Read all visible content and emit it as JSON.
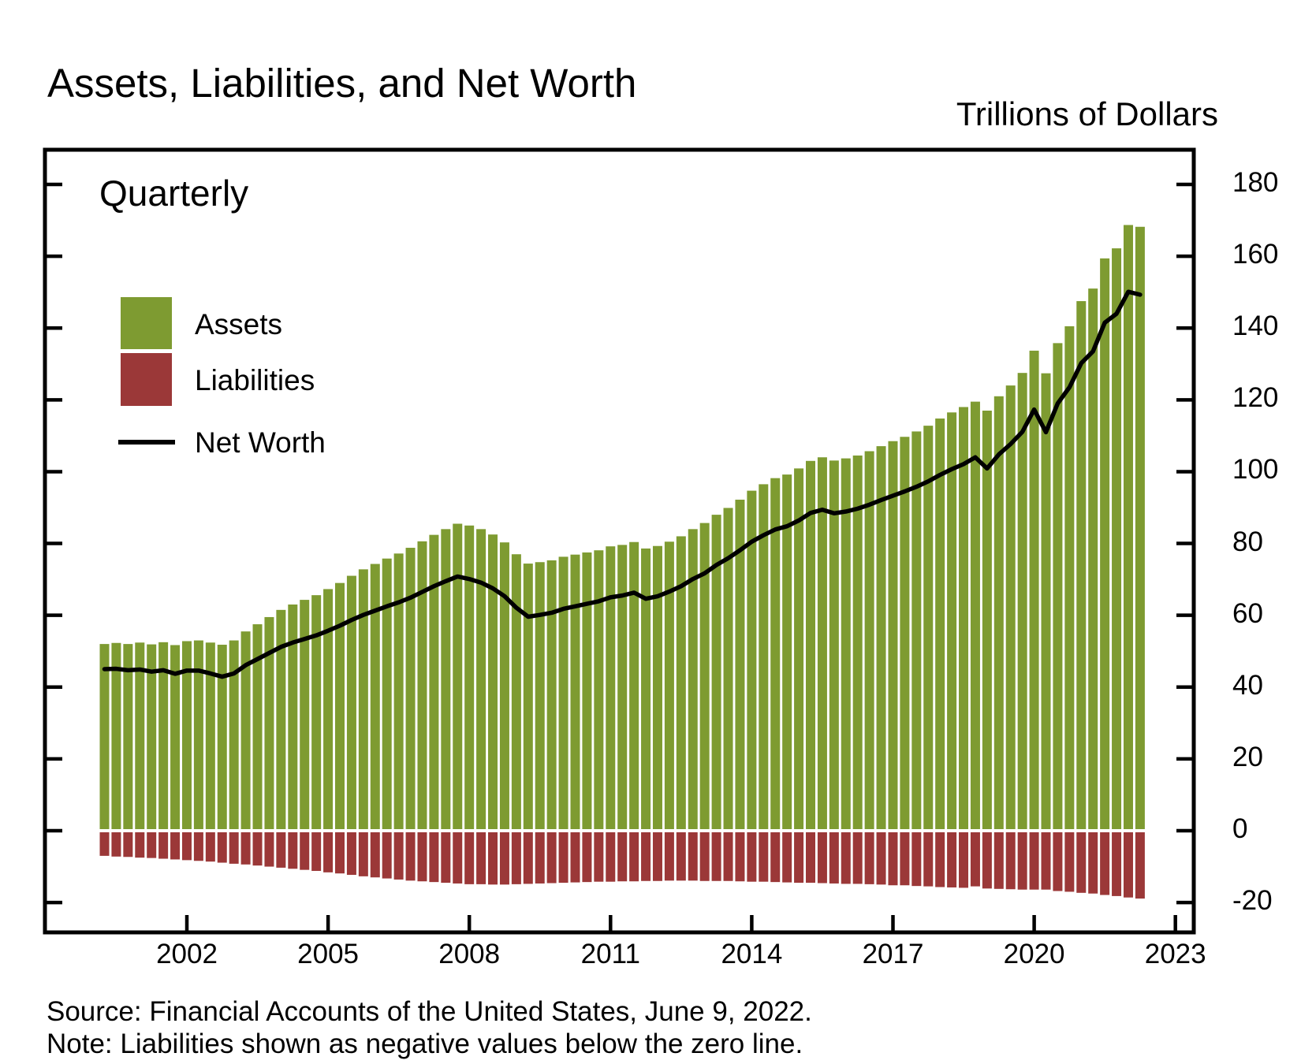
{
  "chart_data": {
    "type": "bar",
    "title": "Assets, Liabilities, and Net Worth",
    "unit_label": "Trillions of Dollars",
    "frequency_label": "Quarterly",
    "source": "Source: Financial Accounts of the United States, June 9, 2022.",
    "note": "Note: Liabilities shown as negative values below the zero line.",
    "legend": [
      {
        "label": "Assets",
        "type": "box",
        "color": "#7E9B31"
      },
      {
        "label": "Liabilities",
        "type": "box",
        "color": "#9B3838"
      },
      {
        "label": "Net Worth",
        "type": "line",
        "color": "#000000"
      }
    ],
    "colors": {
      "assets": "#7E9B31",
      "liabilities": "#9B3838",
      "net_worth": "#000000",
      "axis": "#000000"
    },
    "x_ticks": [
      2002,
      2005,
      2008,
      2011,
      2014,
      2017,
      2020,
      2023
    ],
    "y_ticks": [
      180,
      160,
      140,
      120,
      100,
      80,
      60,
      40,
      20,
      0,
      -20
    ],
    "ylim": [
      -28,
      190
    ],
    "grid": false,
    "legend_position": "top-left-inside",
    "start_quarter": "2000Q1",
    "end_quarter": "2022Q1",
    "series": [
      {
        "name": "Assets",
        "values": [
          52.0,
          52.3,
          52.0,
          52.4,
          51.9,
          52.5,
          51.7,
          52.8,
          53.0,
          52.4,
          51.8,
          53.0,
          55.5,
          57.5,
          59.5,
          61.5,
          63.0,
          64.3,
          65.6,
          67.3,
          69.0,
          71.0,
          72.8,
          74.3,
          75.8,
          77.2,
          78.8,
          80.6,
          82.4,
          84.0,
          85.5,
          85.0,
          84.0,
          82.5,
          80.3,
          77.0,
          74.4,
          74.8,
          75.3,
          76.3,
          76.9,
          77.5,
          78.1,
          79.2,
          79.6,
          80.4,
          78.6,
          79.3,
          80.5,
          82.0,
          84.0,
          85.7,
          88.0,
          89.9,
          92.2,
          94.7,
          96.5,
          98.2,
          99.2,
          100.9,
          103.0,
          104.0,
          103.1,
          103.7,
          104.5,
          105.7,
          107.1,
          108.5,
          109.7,
          111.2,
          112.8,
          114.8,
          116.5,
          118.0,
          119.5,
          117.0,
          121.0,
          124.0,
          127.5,
          133.7,
          127.4,
          135.8,
          140.5,
          147.5,
          151.0,
          159.4,
          162.2,
          168.7,
          168.2
        ]
      },
      {
        "name": "Liabilities",
        "values": [
          -7.0,
          -7.2,
          -7.3,
          -7.5,
          -7.6,
          -7.8,
          -8.0,
          -8.2,
          -8.4,
          -8.6,
          -8.9,
          -9.2,
          -9.4,
          -9.7,
          -10.0,
          -10.3,
          -10.6,
          -10.9,
          -11.2,
          -11.6,
          -11.9,
          -12.3,
          -12.7,
          -13.0,
          -13.3,
          -13.6,
          -13.9,
          -14.1,
          -14.3,
          -14.5,
          -14.7,
          -14.9,
          -14.9,
          -15.0,
          -15.0,
          -14.9,
          -14.8,
          -14.7,
          -14.6,
          -14.5,
          -14.4,
          -14.3,
          -14.2,
          -14.2,
          -14.1,
          -14.1,
          -14.0,
          -14.0,
          -13.9,
          -13.9,
          -13.9,
          -14.0,
          -14.0,
          -14.0,
          -14.1,
          -14.2,
          -14.2,
          -14.3,
          -14.4,
          -14.5,
          -14.5,
          -14.6,
          -14.7,
          -14.8,
          -14.8,
          -14.9,
          -15.0,
          -15.2,
          -15.2,
          -15.4,
          -15.5,
          -15.7,
          -15.8,
          -15.9,
          -15.5,
          -16.1,
          -16.2,
          -16.3,
          -16.4,
          -16.4,
          -16.4,
          -16.8,
          -17.0,
          -17.3,
          -17.5,
          -17.9,
          -18.2,
          -18.6,
          -18.9
        ]
      },
      {
        "name": "Net Worth",
        "values": [
          45.0,
          45.1,
          44.7,
          44.9,
          44.3,
          44.7,
          43.7,
          44.6,
          44.6,
          43.8,
          42.9,
          43.8,
          46.1,
          47.8,
          49.5,
          51.2,
          52.4,
          53.4,
          54.4,
          55.7,
          57.1,
          58.7,
          60.1,
          61.3,
          62.5,
          63.6,
          64.9,
          66.5,
          68.1,
          69.5,
          70.8,
          70.1,
          69.1,
          67.5,
          65.3,
          62.1,
          59.6,
          60.1,
          60.7,
          61.8,
          62.5,
          63.2,
          63.9,
          65.0,
          65.5,
          66.3,
          64.6,
          65.3,
          66.6,
          68.1,
          70.1,
          71.7,
          74.0,
          75.9,
          78.1,
          80.5,
          82.3,
          83.9,
          84.8,
          86.4,
          88.5,
          89.4,
          88.4,
          88.9,
          89.7,
          90.8,
          92.1,
          93.3,
          94.5,
          95.8,
          97.3,
          99.1,
          100.7,
          102.1,
          104.0,
          100.9,
          104.8,
          107.7,
          111.1,
          117.3,
          111.0,
          119.0,
          123.5,
          130.2,
          133.5,
          141.5,
          144.0,
          150.1,
          149.3
        ]
      }
    ]
  }
}
